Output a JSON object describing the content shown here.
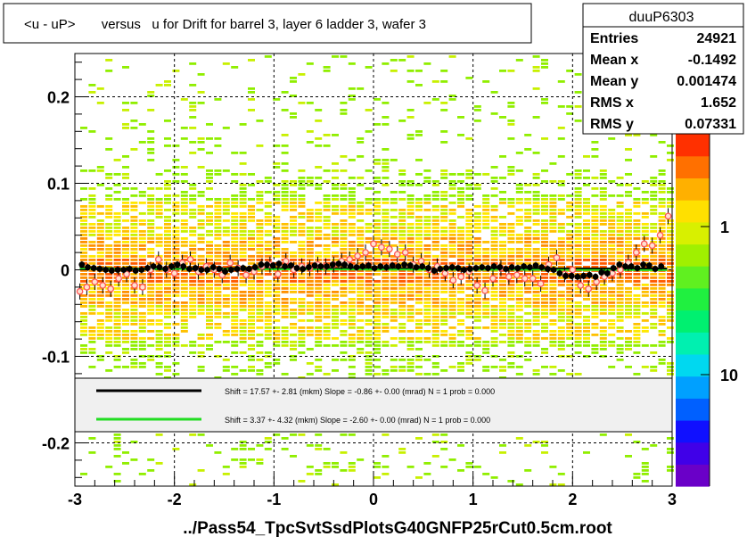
{
  "title": "<u - uP>       versus   u for Drift for barrel 3, layer 6 ladder 3, wafer 3",
  "x_axis_title": "../Pass54_TpcSvtSsdPlotsG40GNFP25rCut0.5cm.root",
  "stats": {
    "name": "duuP6303",
    "rows": [
      {
        "label": "Entries",
        "value": "24921"
      },
      {
        "label": "Mean x",
        "value": "-0.1492"
      },
      {
        "label": "Mean y",
        "value": "0.001474"
      },
      {
        "label": "RMS x",
        "value": "1.652"
      },
      {
        "label": "RMS y",
        "value": "0.07331"
      }
    ]
  },
  "legend": {
    "entries": [
      {
        "color": "#000000",
        "text": "Shift =    17.57 +- 2.81 (mkm) Slope =    -0.86 +- 0.00 (mrad)  N = 1 prob = 0.000"
      },
      {
        "color": "#22dd22",
        "text": "Shift =    3.37 +- 4.32 (mkm) Slope =    -2.60 +- 0.00 (mrad)  N = 1 prob = 0.000"
      }
    ]
  },
  "colors": {
    "frame": "#000000",
    "profile_black": "#000000",
    "profile_open": "#ff5555",
    "fit_green": "#22dd22",
    "palette": [
      "#6a00c8",
      "#4000e8",
      "#1010ff",
      "#0060ff",
      "#00a0ff",
      "#00d8f0",
      "#00f0b0",
      "#00f070",
      "#20f040",
      "#60f020",
      "#a0f000",
      "#d8f000",
      "#ffe000",
      "#ffb000",
      "#ff7000",
      "#ff3000"
    ]
  },
  "chart_data": {
    "type": "heatmap",
    "xlim": [
      -3,
      3
    ],
    "ylim": [
      -0.25,
      0.25
    ],
    "x_ticks": [
      "-3",
      "-2",
      "-1",
      "0",
      "1",
      "2",
      "3"
    ],
    "y_ticks": [
      "0.2",
      "0.1",
      "0",
      "-0.1",
      "-0.2"
    ],
    "y_tick_values": [
      0.2,
      0.1,
      0,
      -0.1,
      -0.2
    ],
    "palette_labels": [
      "1",
      "10"
    ],
    "grid": "dashed",
    "fit_lines": [
      {
        "name": "black",
        "shift_mkm": 17.57,
        "slope_mrad": -0.86
      },
      {
        "name": "green",
        "shift_mkm": 3.37,
        "slope_mrad": -2.6
      }
    ],
    "profile_black": {
      "x": [
        -2.93,
        -2.87,
        -2.81,
        -2.75,
        -2.69,
        -2.63,
        -2.57,
        -2.51,
        -2.45,
        -2.39,
        -2.33,
        -2.27,
        -2.21,
        -2.15,
        -2.09,
        -2.03,
        -1.97,
        -1.91,
        -1.85,
        -1.79,
        -1.73,
        -1.67,
        -1.61,
        -1.55,
        -1.49,
        -1.43,
        -1.37,
        -1.31,
        -1.25,
        -1.19,
        -1.13,
        -1.07,
        -1.01,
        -0.95,
        -0.89,
        -0.83,
        -0.77,
        -0.71,
        -0.65,
        -0.59,
        -0.53,
        -0.47,
        -0.41,
        -0.35,
        -0.29,
        -0.23,
        -0.17,
        -0.11,
        -0.05,
        0.01,
        0.07,
        0.13,
        0.19,
        0.25,
        0.31,
        0.37,
        0.43,
        0.49,
        0.55,
        0.61,
        0.67,
        0.73,
        0.79,
        0.85,
        0.91,
        0.97,
        1.03,
        1.09,
        1.15,
        1.21,
        1.27,
        1.33,
        1.39,
        1.45,
        1.51,
        1.57,
        1.63,
        1.69,
        1.75,
        1.81,
        1.87,
        1.93,
        1.99,
        2.05,
        2.11,
        2.17,
        2.23,
        2.29,
        2.35,
        2.41,
        2.47,
        2.53,
        2.59,
        2.65,
        2.71,
        2.77,
        2.83,
        2.89
      ],
      "y": [
        0.006,
        0.003,
        0.002,
        0.001,
        0.0,
        -0.001,
        0.0,
        0.0,
        0.001,
        -0.001,
        0.0,
        0.002,
        0.004,
        0.003,
        0.001,
        0.004,
        0.006,
        0.004,
        0.001,
        0.002,
        0.0,
        0.0,
        0.003,
        0.001,
        -0.002,
        0.0,
        0.001,
        0.002,
        0.001,
        0.003,
        0.006,
        0.006,
        0.005,
        0.007,
        0.004,
        0.005,
        0.002,
        0.001,
        0.003,
        0.005,
        0.004,
        0.004,
        0.006,
        0.007,
        0.006,
        0.004,
        0.003,
        0.004,
        0.005,
        0.002,
        0.004,
        0.003,
        0.005,
        0.004,
        0.006,
        0.005,
        0.003,
        0.004,
        0.002,
        -0.001,
        0.001,
        0.002,
        0.003,
        0.002,
        0.0,
        0.001,
        0.002,
        0.003,
        0.002,
        0.004,
        0.003,
        0.001,
        0.003,
        0.002,
        0.004,
        0.003,
        0.005,
        0.003,
        0.001,
        0.0,
        -0.004,
        -0.007,
        -0.007,
        -0.008,
        -0.007,
        -0.006,
        -0.008,
        -0.003,
        -0.004,
        0.002,
        0.006,
        0.004,
        0.004,
        0.002,
        0.006,
        0.005,
        0.001,
        0.004
      ]
    },
    "profile_open": {
      "x": [
        -2.95,
        -2.88,
        -2.8,
        -2.72,
        -2.64,
        -2.56,
        -2.48,
        -2.4,
        -2.32,
        -2.24,
        -2.16,
        -2.08,
        -2.0,
        -1.92,
        -1.84,
        -1.76,
        -1.68,
        -1.6,
        -1.52,
        -1.44,
        -1.36,
        -1.28,
        -1.2,
        -1.12,
        -1.04,
        -0.96,
        -0.88,
        -0.8,
        -0.72,
        -0.64,
        -0.56,
        -0.48,
        -0.4,
        -0.32,
        -0.24,
        -0.16,
        -0.08,
        0.0,
        0.08,
        0.16,
        0.24,
        0.32,
        0.4,
        0.48,
        0.56,
        0.64,
        0.72,
        0.8,
        0.88,
        0.96,
        1.04,
        1.12,
        1.2,
        1.28,
        1.36,
        1.44,
        1.52,
        1.6,
        1.68,
        1.76,
        1.84,
        1.92,
        2.0,
        2.08,
        2.16,
        2.24,
        2.32,
        2.4,
        2.48,
        2.56,
        2.64,
        2.72,
        2.8,
        2.88,
        2.96
      ],
      "y": [
        -0.025,
        -0.02,
        -0.014,
        -0.018,
        -0.022,
        -0.01,
        -0.005,
        -0.018,
        -0.02,
        0.0,
        0.012,
        0.0,
        -0.004,
        0.008,
        0.012,
        -0.002,
        0.004,
        0.0,
        -0.006,
        0.008,
        0.002,
        -0.006,
        -0.002,
        0.004,
        0.006,
        -0.005,
        0.01,
        0.0,
        0.004,
        0.002,
        0.006,
        0.004,
        0.006,
        0.01,
        0.012,
        0.016,
        0.02,
        0.03,
        0.026,
        0.024,
        0.018,
        0.02,
        0.006,
        0.01,
        0.0,
        0.004,
        -0.004,
        -0.012,
        -0.008,
        -0.002,
        -0.018,
        -0.024,
        -0.01,
        0.002,
        -0.008,
        -0.006,
        -0.01,
        -0.01,
        -0.016,
        0.006,
        0.014,
        -0.005,
        0.0,
        -0.018,
        -0.022,
        -0.014,
        -0.008,
        -0.004,
        0.0,
        0.008,
        0.02,
        0.03,
        0.028,
        0.04,
        0.062
      ]
    }
  }
}
